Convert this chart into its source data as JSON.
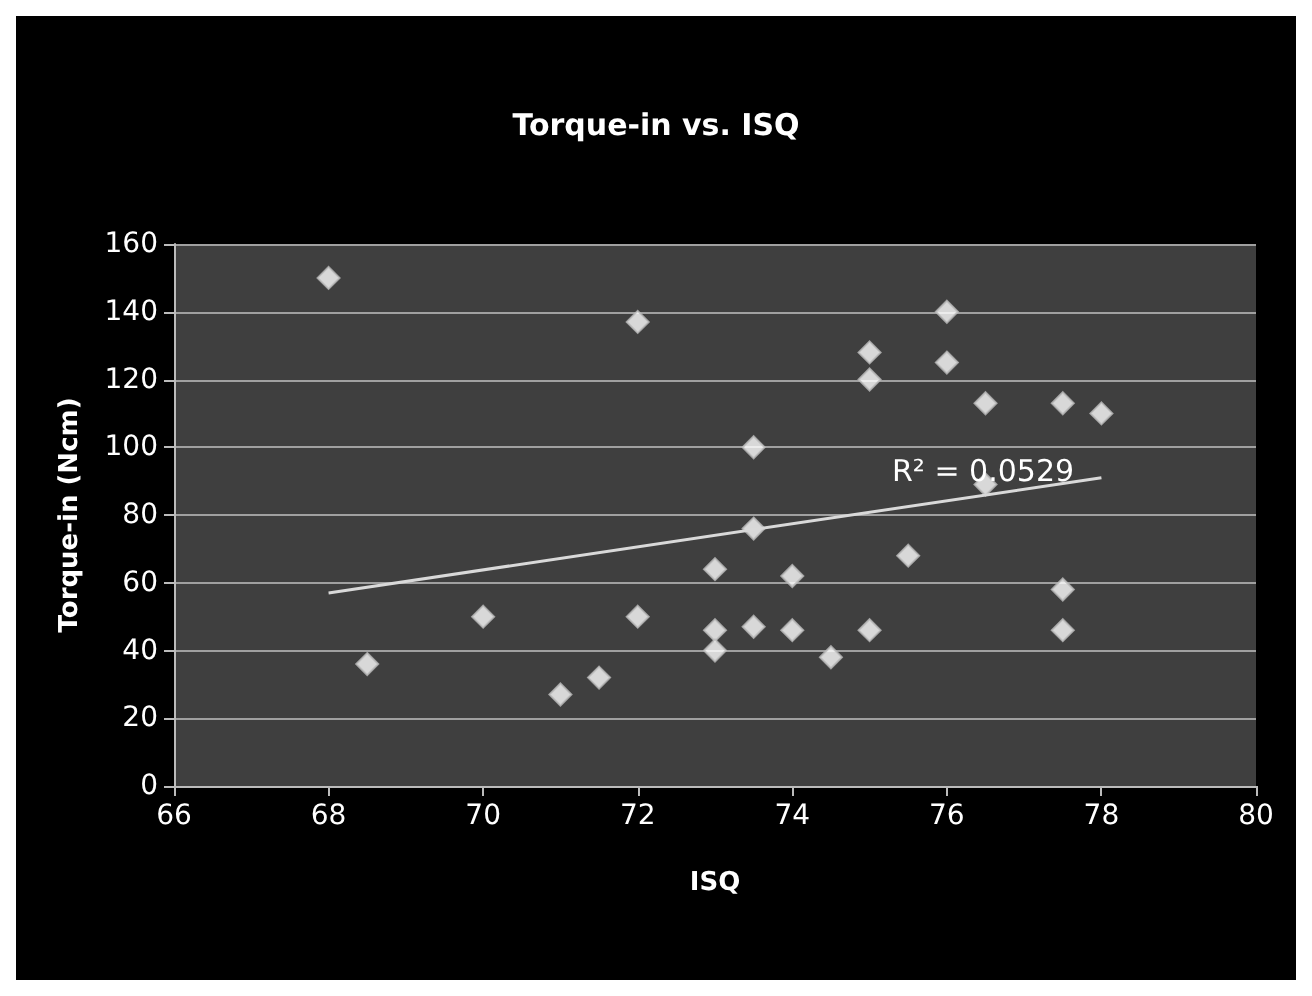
{
  "chart_data": {
    "type": "scatter",
    "title": "Torque-in vs. ISQ",
    "xlabel": "ISQ",
    "ylabel": "Torque-in (Ncm)",
    "xlim": [
      66,
      80
    ],
    "xticks": [
      66,
      68,
      70,
      72,
      74,
      76,
      78,
      80
    ],
    "ylim": [
      0,
      160
    ],
    "yticks": [
      0,
      20,
      40,
      60,
      80,
      100,
      120,
      140,
      160
    ],
    "grid": "y",
    "series": [
      {
        "marker": "diamond",
        "color": "#ffffff",
        "x": [
          68,
          68.5,
          70,
          71,
          71.5,
          72,
          72,
          73,
          73,
          73,
          73.5,
          73.5,
          73.5,
          74,
          74,
          74.5,
          75,
          75,
          75,
          75.5,
          76,
          76,
          76.5,
          76.5,
          77.5,
          77.5,
          77.5,
          78
        ],
        "values": [
          150,
          36,
          50,
          27,
          32,
          137,
          50,
          64,
          46,
          40,
          100,
          76,
          47,
          62,
          46,
          38,
          128,
          120,
          46,
          68,
          140,
          125,
          113,
          89,
          113,
          58,
          46,
          110
        ]
      },
      {
        "type": "line",
        "marker": "none",
        "color": "#d9d9d9",
        "x": [
          68,
          78
        ],
        "values": [
          57,
          91
        ]
      }
    ],
    "annotations": [
      "R² = 0.0529"
    ]
  }
}
